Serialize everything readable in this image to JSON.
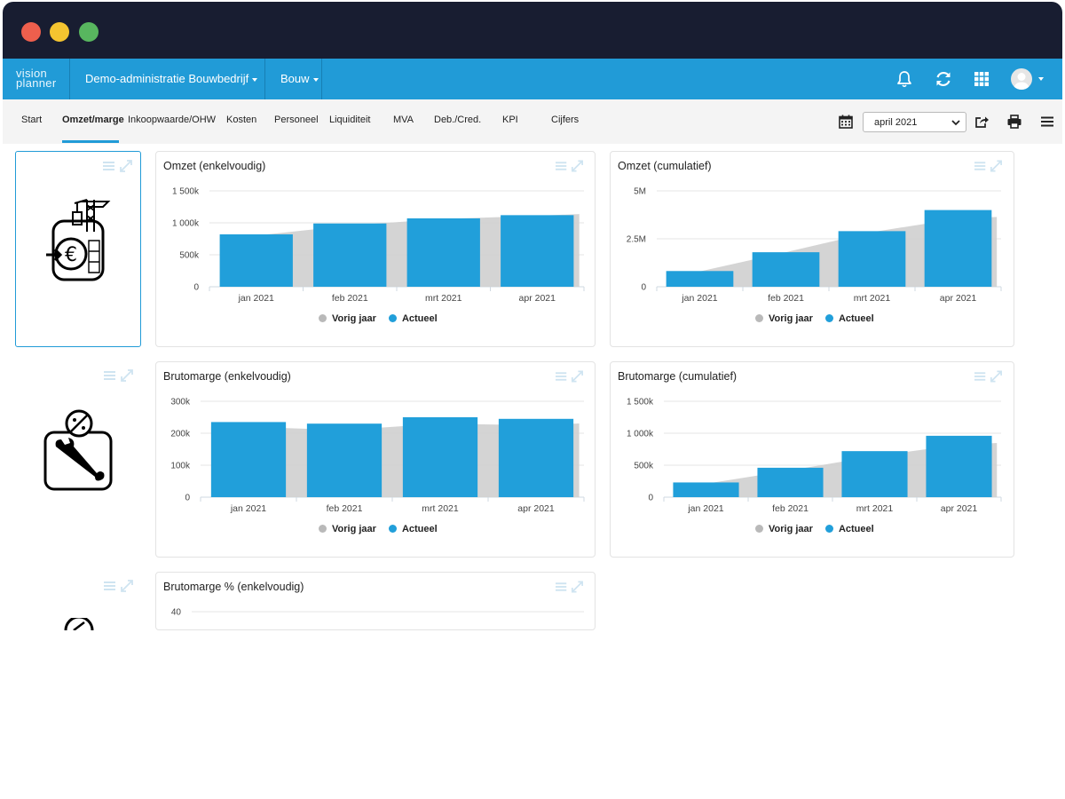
{
  "app": {
    "logo_line1": "vision",
    "logo_line2": "planner",
    "administration": "Demo-administratie Bouwbedrijf",
    "sector": "Bouw"
  },
  "icons": {
    "notifications": "bell-icon",
    "refresh": "refresh-icon",
    "apps": "grid-icon",
    "user": "avatar-icon"
  },
  "nav": {
    "tabs": [
      {
        "label": "Start"
      },
      {
        "label": "Omzet/marge",
        "active": true
      },
      {
        "label": "Inkoopwaarde/OHW"
      },
      {
        "label": "Kosten"
      },
      {
        "label": "Personeel"
      },
      {
        "label": "Liquiditeit"
      },
      {
        "label": "MVA"
      },
      {
        "label": "Deb./Cred."
      },
      {
        "label": "KPI"
      },
      {
        "label": "Cijfers"
      }
    ],
    "period": "april 2021"
  },
  "colors": {
    "accent": "#219bd7",
    "bar": "#219fda",
    "previous_year": "#cfcfcf",
    "titlebar": "#181d31"
  },
  "legend": {
    "previous": "Vorig jaar",
    "current": "Actueel"
  },
  "charts": [
    {
      "id": "omzet-enkelvoudig",
      "title": "Omzet (enkelvoudig)",
      "chart_data": {
        "type": "bar",
        "categories": [
          "jan 2021",
          "feb 2021",
          "mrt 2021",
          "apr 2021"
        ],
        "yticks": [
          "0",
          "500k",
          "1 000k",
          "1 500k"
        ],
        "ylim": [
          0,
          1500000
        ],
        "series": [
          {
            "name": "Vorig jaar",
            "type": "area",
            "values": [
              800000,
              960000,
              1060000,
              1110000
            ]
          },
          {
            "name": "Actueel",
            "type": "bar",
            "values": [
              820000,
              990000,
              1070000,
              1120000
            ]
          }
        ]
      }
    },
    {
      "id": "omzet-cumulatief",
      "title": "Omzet (cumulatief)",
      "chart_data": {
        "type": "bar",
        "categories": [
          "jan 2021",
          "feb 2021",
          "mrt 2021",
          "apr 2021"
        ],
        "yticks": [
          "0",
          "2.5M",
          "5M"
        ],
        "ylim": [
          0,
          5000000
        ],
        "series": [
          {
            "name": "Vorig jaar",
            "type": "area",
            "values": [
              800000,
              1800000,
              2850000,
              3550000
            ]
          },
          {
            "name": "Actueel",
            "type": "bar",
            "values": [
              820000,
              1800000,
              2900000,
              4000000
            ]
          }
        ]
      }
    },
    {
      "id": "brutomarge-enkelvoudig",
      "title": "Brutomarge (enkelvoudig)",
      "chart_data": {
        "type": "bar",
        "categories": [
          "jan 2021",
          "feb 2021",
          "mrt 2021",
          "apr 2021"
        ],
        "yticks": [
          "0",
          "100k",
          "200k",
          "300k"
        ],
        "ylim": [
          0,
          300000
        ],
        "series": [
          {
            "name": "Vorig jaar",
            "type": "area",
            "values": [
              220000,
              210000,
              230000,
              225000
            ]
          },
          {
            "name": "Actueel",
            "type": "bar",
            "values": [
              235000,
              230000,
              250000,
              245000
            ]
          }
        ]
      }
    },
    {
      "id": "brutomarge-cumulatief",
      "title": "Brutomarge (cumulatief)",
      "chart_data": {
        "type": "bar",
        "categories": [
          "jan 2021",
          "feb 2021",
          "mrt 2021",
          "apr 2021"
        ],
        "yticks": [
          "0",
          "500k",
          "1 000k",
          "1 500k"
        ],
        "ylim": [
          0,
          1500000
        ],
        "series": [
          {
            "name": "Vorig jaar",
            "type": "area",
            "values": [
              210000,
              420000,
              640000,
              820000
            ]
          },
          {
            "name": "Actueel",
            "type": "bar",
            "values": [
              230000,
              460000,
              720000,
              960000
            ]
          }
        ]
      }
    },
    {
      "id": "brutomarge-pct-enkelvoudig",
      "title": "Brutomarge % (enkelvoudig)",
      "chart_data": {
        "type": "bar",
        "categories": [],
        "yticks": [
          "40"
        ],
        "ylim": [
          0,
          40
        ],
        "series": []
      }
    }
  ]
}
